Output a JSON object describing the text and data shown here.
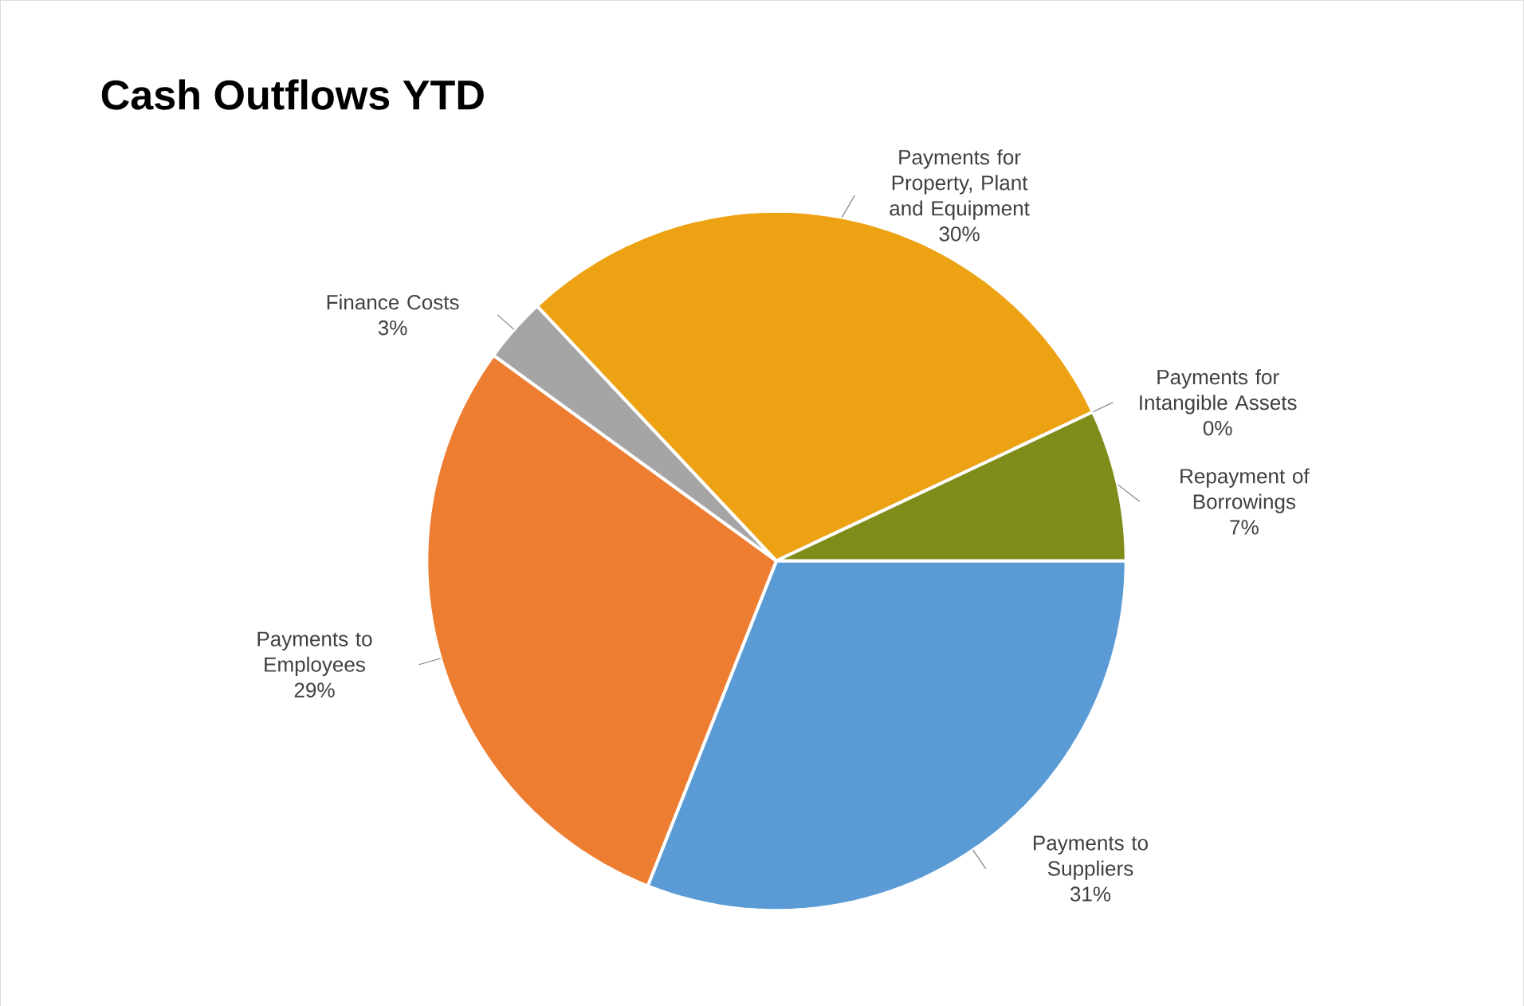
{
  "chart_data": {
    "type": "pie",
    "title": "Cash Outflows YTD",
    "categories": [
      "Payments to Suppliers",
      "Payments to Employees",
      "Finance Costs",
      "Payments for Property, Plant and Equipment",
      "Payments for Intangible Assets",
      "Repayment of Borrowings"
    ],
    "values": [
      31,
      29,
      3,
      30,
      0,
      7
    ],
    "value_labels": [
      "31%",
      "29%",
      "3%",
      "30%",
      "0%",
      "7%"
    ],
    "colors": [
      "#5b9bd5",
      "#ed7d31",
      "#a5a5a5",
      "#eda214",
      "#4472c4",
      "#7f8c1a"
    ]
  }
}
